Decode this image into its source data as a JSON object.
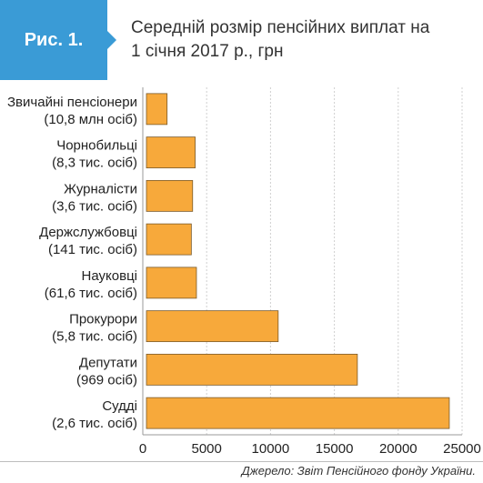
{
  "figure": {
    "badge": "Рис. 1.",
    "title_lines": [
      "Середній розмір пенсійних виплат на",
      "1 січня 2017 р., грн"
    ],
    "source": "Джерело: Звіт Пенсійного фонду України."
  },
  "colors": {
    "bar": "#f7a93b",
    "bar_stroke": "#7a5a2a",
    "badge": "#3a9bd6",
    "grid": "#d0d0d0"
  },
  "chart_data": {
    "type": "bar",
    "orientation": "horizontal",
    "title": "Середній розмір пенсійних виплат на 1 січня 2017 р., грн",
    "xlabel": "",
    "ylabel": "",
    "xlim": [
      0,
      25000
    ],
    "xticks": [
      "0",
      "5000",
      "10000",
      "15000",
      "20000",
      "25000"
    ],
    "grid": true,
    "categories": [
      {
        "line1": "Звичайні пенсіонери",
        "line2": "(10,8 млн осіб)"
      },
      {
        "line1": "Чорнобильці",
        "line2": "(8,3 тис. осіб)"
      },
      {
        "line1": "Журналісти",
        "line2": "(3,6 тис. осіб)"
      },
      {
        "line1": "Держслужбовці",
        "line2": "(141 тис. осіб)"
      },
      {
        "line1": "Науковці",
        "line2": "(61,6 тис. осіб)"
      },
      {
        "line1": "Прокурори",
        "line2": "(5,8 тис. осіб)"
      },
      {
        "line1": "Депутати",
        "line2": "(969 осіб)"
      },
      {
        "line1": "Судді",
        "line2": "(2,6 тис. осіб)"
      }
    ],
    "values": [
      1900,
      4100,
      3900,
      3800,
      4200,
      10600,
      16800,
      24000
    ]
  }
}
